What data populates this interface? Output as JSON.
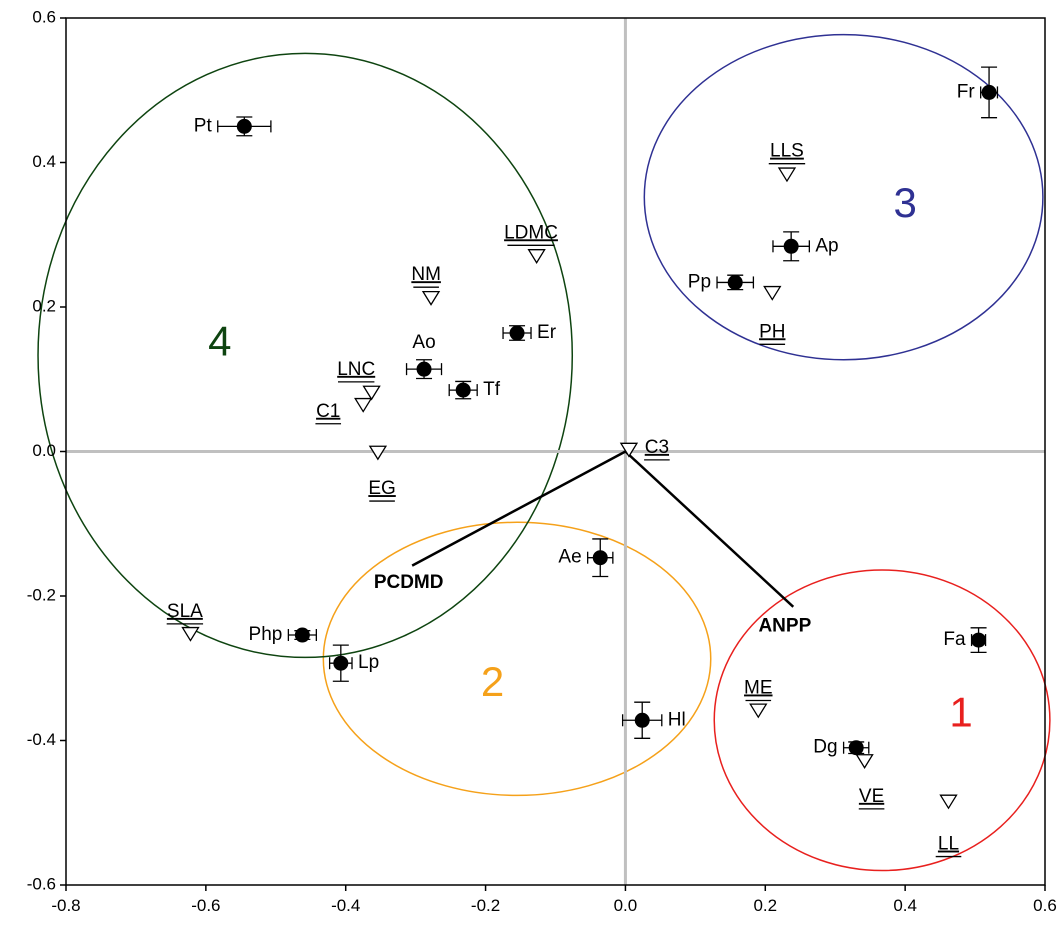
{
  "chart_data": {
    "type": "scatter",
    "xlim": [
      -0.8,
      0.6
    ],
    "ylim": [
      -0.6,
      0.6
    ],
    "x_ticks": [
      {
        "v": -0.8,
        "label": "-0.8"
      },
      {
        "v": -0.6,
        "label": "-0.6"
      },
      {
        "v": -0.4,
        "label": "-0.4"
      },
      {
        "v": -0.2,
        "label": "-0.2"
      },
      {
        "v": 0.0,
        "label": "0.0"
      },
      {
        "v": 0.2,
        "label": "0.2"
      },
      {
        "v": 0.4,
        "label": "0.4"
      },
      {
        "v": 0.6,
        "label": "0.6"
      }
    ],
    "y_ticks": [
      {
        "v": 0.6,
        "label": "0.6"
      },
      {
        "v": 0.4,
        "label": "0.4"
      },
      {
        "v": 0.2,
        "label": "0.2"
      },
      {
        "v": 0.0,
        "label": "0.0"
      },
      {
        "v": -0.2,
        "label": "-0.2"
      },
      {
        "v": -0.4,
        "label": "-0.4"
      },
      {
        "v": -0.6,
        "label": "-0.6"
      }
    ],
    "species": [
      {
        "label": "Pt",
        "x": -0.545,
        "y": 0.45,
        "xerr": 0.038,
        "yerr": 0.013,
        "side": "left"
      },
      {
        "label": "Fr",
        "x": 0.52,
        "y": 0.497,
        "xerr": 0.012,
        "yerr": 0.035,
        "side": "left"
      },
      {
        "label": "Ap",
        "x": 0.237,
        "y": 0.284,
        "xerr": 0.026,
        "yerr": 0.02,
        "side": "right"
      },
      {
        "label": "Pp",
        "x": 0.157,
        "y": 0.234,
        "xerr": 0.026,
        "yerr": 0.01,
        "side": "left"
      },
      {
        "label": "Er",
        "x": -0.155,
        "y": 0.164,
        "xerr": 0.02,
        "yerr": 0.01,
        "side": "right"
      },
      {
        "label": "Ao",
        "x": -0.288,
        "y": 0.114,
        "xerr": 0.025,
        "yerr": 0.013,
        "side": "above"
      },
      {
        "label": "Tf",
        "x": -0.232,
        "y": 0.085,
        "xerr": 0.02,
        "yerr": 0.012,
        "side": "right"
      },
      {
        "label": "Ae",
        "x": -0.036,
        "y": -0.147,
        "xerr": 0.018,
        "yerr": 0.026,
        "side": "left"
      },
      {
        "label": "Php",
        "x": -0.462,
        "y": -0.254,
        "xerr": 0.02,
        "yerr": 0.006,
        "side": "left"
      },
      {
        "label": "Lp",
        "x": -0.407,
        "y": -0.293,
        "xerr": 0.016,
        "yerr": 0.025,
        "side": "right"
      },
      {
        "label": "Hl",
        "x": 0.024,
        "y": -0.372,
        "xerr": 0.028,
        "yerr": 0.025,
        "side": "right"
      },
      {
        "label": "Fa",
        "x": 0.505,
        "y": -0.261,
        "xerr": 0.01,
        "yerr": 0.017,
        "side": "left"
      },
      {
        "label": "Dg",
        "x": 0.33,
        "y": -0.41,
        "xerr": 0.018,
        "yerr": 0.008,
        "side": "left"
      }
    ],
    "traits": [
      {
        "label": "LLS",
        "x": 0.231,
        "y": 0.384,
        "lx": 0.231,
        "ly": 0.415
      },
      {
        "label": "LDMC",
        "x": -0.127,
        "y": 0.271,
        "lx": -0.135,
        "ly": 0.302
      },
      {
        "label": "NM",
        "x": -0.278,
        "y": 0.213,
        "lx": -0.285,
        "ly": 0.244
      },
      {
        "label": "PH",
        "x": 0.21,
        "y": 0.22,
        "lx": 0.21,
        "ly": 0.165
      },
      {
        "label": "LNC",
        "x": -0.363,
        "y": 0.082,
        "lx": -0.385,
        "ly": 0.113
      },
      {
        "label": "C1",
        "x": -0.375,
        "y": 0.065,
        "lx": -0.425,
        "ly": 0.055
      },
      {
        "label": "C3",
        "x": 0.005,
        "y": 0.003,
        "lx": 0.045,
        "ly": 0.005
      },
      {
        "label": "EG",
        "x": -0.354,
        "y": -0.001,
        "lx": -0.348,
        "ly": -0.052
      },
      {
        "label": "SLA",
        "x": -0.622,
        "y": -0.252,
        "lx": -0.63,
        "ly": -0.222
      },
      {
        "label": "ME",
        "x": 0.19,
        "y": -0.358,
        "lx": 0.19,
        "ly": -0.328
      },
      {
        "label": "VE",
        "x": 0.342,
        "y": -0.428,
        "lx": 0.352,
        "ly": -0.478
      },
      {
        "label": "LL",
        "x": 0.462,
        "y": -0.484,
        "lx": 0.462,
        "ly": -0.544
      }
    ],
    "vectors": [
      {
        "label": "PCDMD",
        "x": -0.305,
        "y": -0.158,
        "lx": -0.31,
        "ly": -0.182
      },
      {
        "label": "ANPP",
        "x": 0.24,
        "y": -0.215,
        "lx": 0.228,
        "ly": -0.242
      }
    ],
    "groups": [
      {
        "label": "1",
        "cx": 0.367,
        "cy": -0.372,
        "rx": 0.24,
        "ry": 0.208,
        "color": "#e8201e",
        "lx": 0.48,
        "ly": -0.365
      },
      {
        "label": "2",
        "cx": -0.155,
        "cy": -0.287,
        "rx": 0.277,
        "ry": 0.189,
        "color": "#f5a11a",
        "lx": -0.19,
        "ly": -0.323
      },
      {
        "label": "3",
        "cx": 0.312,
        "cy": 0.352,
        "rx": 0.285,
        "ry": 0.225,
        "color": "#2f3193",
        "lx": 0.4,
        "ly": 0.34
      },
      {
        "label": "4",
        "cx": -0.458,
        "cy": 0.133,
        "rx": 0.382,
        "ry": 0.418,
        "color": "#0e4410",
        "lx": -0.58,
        "ly": 0.148
      }
    ]
  }
}
